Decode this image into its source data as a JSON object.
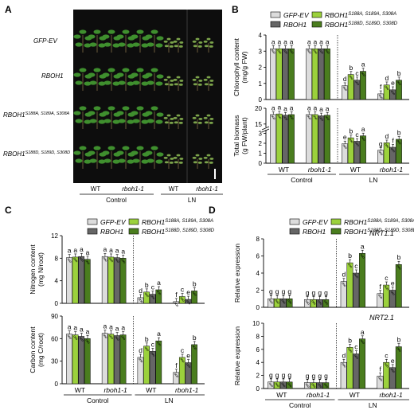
{
  "panels": [
    {
      "label": "A"
    },
    {
      "label": "B"
    },
    {
      "label": "C"
    },
    {
      "label": "D"
    }
  ],
  "panel_a": {
    "row_labels": [
      "GFP-EV",
      "RBOH1",
      "RBOH1",
      "RBOH1"
    ],
    "row_superscripts": [
      "",
      "",
      "S188A, S189A, S308A",
      "S188D, S189D, S308D"
    ],
    "col_groups": [
      "WT",
      "rboh1-1",
      "WT",
      "rboh1-1"
    ],
    "conditions": [
      "Control",
      "LN"
    ]
  },
  "legend": {
    "items": [
      {
        "name": "GFP-EV",
        "sup": "",
        "color": "#dcdcdc",
        "italic": true
      },
      {
        "name": "RBOH1",
        "sup": "S188A, S189A, S308A",
        "color": "#9bd13c",
        "italic": true
      },
      {
        "name": "RBOH1",
        "sup": "",
        "color": "#666666",
        "italic": true
      },
      {
        "name": "RBOH1",
        "sup": "S188D, S189D, S308D",
        "color": "#4a7d1e",
        "italic": true
      }
    ]
  },
  "x_groups": [
    "WT",
    "rboh1-1",
    "WT",
    "rboh1-1"
  ],
  "x_conditions": [
    "Control",
    "LN"
  ],
  "chart_data": [
    {
      "panel": "B",
      "type": "bar",
      "ylabel": [
        "Chlorophyll content",
        "(mg/g FW)"
      ],
      "ylim": [
        0,
        4
      ],
      "yticks": [
        0,
        1,
        2,
        3,
        4
      ],
      "categories": [
        "WT Control",
        "rboh1-1 Control",
        "WT LN",
        "rboh1-1 LN"
      ],
      "series": [
        {
          "name": "GFP-EV",
          "values": [
            3.15,
            3.15,
            0.85,
            0.35
          ]
        },
        {
          "name": "RBOH1",
          "values": [
            3.15,
            3.15,
            1.55,
            0.9
          ]
        },
        {
          "name": "RBOH1 S188A, S189A, S308A",
          "values": [
            3.15,
            3.15,
            1.2,
            0.6
          ]
        },
        {
          "name": "RBOH1 S188D, S189D, S308D",
          "values": [
            3.15,
            3.15,
            1.75,
            1.2
          ]
        }
      ],
      "letters": [
        [
          "a",
          "a",
          "a",
          "a"
        ],
        [
          "a",
          "a",
          "a",
          "a"
        ],
        [
          "d",
          "b",
          "c",
          "a"
        ],
        [
          "f",
          "d",
          "e",
          "b"
        ]
      ]
    },
    {
      "panel": "B",
      "type": "bar",
      "ylabel": [
        "Total biomass",
        "(g FW/plant)"
      ],
      "ylim": [
        0,
        20
      ],
      "yticks": [
        0,
        1,
        2,
        3,
        15,
        20
      ],
      "axis_break": [
        3.2,
        14.2
      ],
      "categories": [
        "WT Control",
        "rboh1-1 Control",
        "WT LN",
        "rboh1-1 LN"
      ],
      "series": [
        {
          "name": "GFP-EV",
          "values": [
            18.0,
            18.0,
            1.95,
            1.3
          ]
        },
        {
          "name": "RBOH1",
          "values": [
            18.2,
            18.0,
            2.55,
            2.05
          ]
        },
        {
          "name": "RBOH1 S188A, S189A, S308A",
          "values": [
            17.8,
            17.6,
            2.2,
            1.6
          ]
        },
        {
          "name": "RBOH1 S188D, S189D, S308D",
          "values": [
            18.0,
            17.8,
            2.75,
            2.4
          ]
        }
      ],
      "letters": [
        [
          "a",
          "a",
          "a",
          "a"
        ],
        [
          "a",
          "a",
          "a",
          "a"
        ],
        [
          "e",
          "b",
          "c",
          "a"
        ],
        [
          "g",
          "d",
          "f",
          "b"
        ]
      ]
    },
    {
      "panel": "C",
      "type": "bar",
      "ylabel": [
        "Nitrogen content",
        "(mg N/root)"
      ],
      "ylim": [
        0,
        12
      ],
      "yticks": [
        0,
        4,
        8,
        12
      ],
      "categories": [
        "WT Control",
        "rboh1-1 Control",
        "WT LN",
        "rboh1-1 LN"
      ],
      "series": [
        {
          "name": "GFP-EV",
          "values": [
            8.1,
            8.3,
            1.0,
            0.3
          ]
        },
        {
          "name": "RBOH1",
          "values": [
            8.2,
            8.2,
            2.0,
            1.2
          ]
        },
        {
          "name": "RBOH1 S188A, S189A, S308A",
          "values": [
            8.3,
            8.1,
            1.6,
            0.7
          ]
        },
        {
          "name": "RBOH1 S188D, S189D, S308D",
          "values": [
            7.8,
            8.0,
            2.4,
            2.2
          ]
        }
      ],
      "letters": [
        [
          "a",
          "a",
          "a",
          "a"
        ],
        [
          "a",
          "a",
          "a",
          "a"
        ],
        [
          "d",
          "b",
          "c",
          "a"
        ],
        [
          "f",
          "c",
          "e",
          "b"
        ]
      ]
    },
    {
      "panel": "C",
      "type": "bar",
      "ylabel": [
        "Carbon content",
        "(mg C/root)"
      ],
      "ylim": [
        0,
        90
      ],
      "yticks": [
        0,
        30,
        60,
        90
      ],
      "categories": [
        "WT Control",
        "rboh1-1 Control",
        "WT LN",
        "rboh1-1 LN"
      ],
      "series": [
        {
          "name": "GFP-EV",
          "values": [
            66,
            67,
            35,
            15
          ]
        },
        {
          "name": "RBOH1",
          "values": [
            65,
            66,
            50,
            35
          ]
        },
        {
          "name": "RBOH1 S188A, S189A, S308A",
          "values": [
            63,
            64,
            43,
            28
          ]
        },
        {
          "name": "RBOH1 S188D, S189D, S308D",
          "values": [
            60,
            65,
            57,
            52
          ]
        }
      ],
      "letters": [
        [
          "a",
          "a",
          "a",
          "a"
        ],
        [
          "a",
          "a",
          "a",
          "a"
        ],
        [
          "d",
          "b",
          "c",
          "a"
        ],
        [
          "f",
          "c",
          "e",
          "b"
        ]
      ]
    },
    {
      "panel": "D",
      "type": "bar",
      "title": "NRT1.1",
      "ylabel": [
        "Relative expression"
      ],
      "ylim": [
        0,
        8
      ],
      "yticks": [
        0,
        2,
        4,
        6,
        8
      ],
      "categories": [
        "WT Control",
        "rboh1-1 Control",
        "WT LN",
        "rboh1-1 LN"
      ],
      "series": [
        {
          "name": "GFP-EV",
          "values": [
            1.0,
            0.9,
            3.0,
            1.6
          ]
        },
        {
          "name": "RBOH1",
          "values": [
            1.0,
            0.9,
            5.2,
            2.6
          ]
        },
        {
          "name": "RBOH1 S188A, S189A, S308A",
          "values": [
            1.0,
            0.9,
            4.0,
            2.0
          ]
        },
        {
          "name": "RBOH1 S188D, S189D, S308D",
          "values": [
            1.0,
            0.9,
            6.3,
            5.0
          ]
        }
      ],
      "letters": [
        [
          "g",
          "g",
          "g",
          "g"
        ],
        [
          "g",
          "g",
          "g",
          "g"
        ],
        [
          "d",
          "b",
          "c",
          "a"
        ],
        [
          "f",
          "c",
          "e",
          "b"
        ]
      ]
    },
    {
      "panel": "D",
      "type": "bar",
      "title": "NRT2.1",
      "ylabel": [
        "Relative expression"
      ],
      "ylim": [
        0,
        10
      ],
      "yticks": [
        0,
        2,
        4,
        6,
        8,
        10
      ],
      "categories": [
        "WT Control",
        "rboh1-1 Control",
        "WT LN",
        "rboh1-1 LN"
      ],
      "series": [
        {
          "name": "GFP-EV",
          "values": [
            1.0,
            0.9,
            4.0,
            1.9
          ]
        },
        {
          "name": "RBOH1",
          "values": [
            1.0,
            0.9,
            6.3,
            4.0
          ]
        },
        {
          "name": "RBOH1 S188A, S189A, S308A",
          "values": [
            1.0,
            0.9,
            5.3,
            3.2
          ]
        },
        {
          "name": "RBOH1 S188D, S189D, S308D",
          "values": [
            1.0,
            0.9,
            7.6,
            6.4
          ]
        }
      ],
      "letters": [
        [
          "g",
          "g",
          "g",
          "g"
        ],
        [
          "g",
          "g",
          "g",
          "g"
        ],
        [
          "d",
          "b",
          "c",
          "a"
        ],
        [
          "f",
          "c",
          "e",
          "b"
        ]
      ]
    }
  ]
}
